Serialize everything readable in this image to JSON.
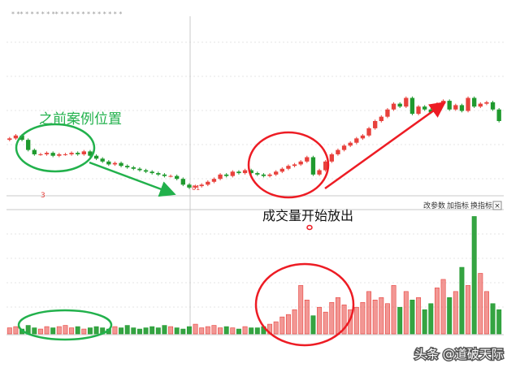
{
  "chart_data": {
    "type": "candlestick",
    "categories": [
      null,
      null,
      null,
      null,
      null,
      null,
      null,
      null,
      null,
      null,
      null,
      null,
      null,
      null,
      null,
      null,
      null,
      null,
      null,
      null,
      null,
      null,
      null,
      null,
      null,
      null,
      null,
      null,
      null,
      null,
      null,
      null,
      null,
      null,
      null,
      null,
      null,
      null,
      null,
      null,
      null,
      null,
      null,
      null,
      null,
      null,
      null,
      null,
      null,
      null,
      null,
      null,
      null,
      null,
      null,
      null,
      null,
      null,
      null,
      null,
      null,
      null,
      null,
      null,
      null,
      null,
      null,
      null,
      null,
      null,
      null,
      null,
      null,
      null,
      null,
      null,
      null,
      null,
      null,
      null
    ],
    "open": [
      37,
      38,
      40,
      37,
      30,
      27,
      27,
      28,
      26,
      27,
      27,
      28,
      27,
      29,
      26,
      24,
      22,
      20,
      21,
      19,
      18,
      17,
      16,
      15,
      14,
      13,
      12,
      12,
      10,
      6,
      4,
      5,
      6,
      8,
      10,
      13,
      12,
      15,
      14,
      16,
      14,
      13,
      12,
      13,
      15,
      17,
      19,
      20,
      22,
      25,
      13,
      16,
      22,
      27,
      30,
      33,
      35,
      38,
      40,
      45,
      50,
      53,
      58,
      62,
      60,
      66,
      55,
      60,
      58,
      56,
      62,
      64,
      58,
      61,
      57,
      66,
      60,
      62,
      63,
      58
    ],
    "high": [
      39,
      41,
      41,
      38,
      31,
      28,
      29,
      29,
      28,
      28,
      29,
      29,
      30,
      30,
      27,
      25,
      23,
      22,
      22,
      20,
      19,
      18,
      17,
      16,
      15,
      14,
      13,
      13,
      11,
      7,
      6,
      7,
      9,
      11,
      14,
      14,
      16,
      16,
      17,
      17,
      15,
      14,
      14,
      16,
      18,
      20,
      21,
      23,
      26,
      26,
      17,
      23,
      28,
      31,
      34,
      36,
      39,
      41,
      46,
      51,
      54,
      59,
      63,
      63,
      67,
      67,
      61,
      61,
      59,
      63,
      65,
      65,
      62,
      62,
      67,
      67,
      63,
      64,
      64,
      59
    ],
    "low": [
      36,
      37,
      36,
      29,
      26,
      26,
      26,
      25,
      25,
      26,
      26,
      26,
      26,
      25,
      23,
      21,
      19,
      19,
      18,
      17,
      16,
      15,
      14,
      13,
      12,
      11,
      11,
      9,
      5,
      3,
      3,
      4,
      5,
      7,
      9,
      11,
      11,
      13,
      13,
      13,
      12,
      11,
      11,
      12,
      14,
      16,
      18,
      19,
      21,
      12,
      12,
      15,
      21,
      26,
      29,
      32,
      34,
      37,
      39,
      44,
      49,
      52,
      57,
      59,
      59,
      54,
      54,
      57,
      55,
      55,
      61,
      57,
      57,
      56,
      56,
      59,
      59,
      61,
      57,
      49
    ],
    "close": [
      38,
      40,
      37,
      30,
      27,
      27,
      28,
      26,
      27,
      27,
      28,
      27,
      29,
      26,
      24,
      22,
      20,
      21,
      19,
      18,
      17,
      16,
      15,
      14,
      13,
      12,
      12,
      10,
      6,
      4,
      5,
      6,
      8,
      10,
      13,
      12,
      15,
      14,
      16,
      14,
      13,
      12,
      13,
      15,
      17,
      19,
      20,
      22,
      25,
      13,
      16,
      22,
      27,
      30,
      33,
      35,
      38,
      40,
      45,
      50,
      53,
      58,
      62,
      60,
      66,
      55,
      60,
      58,
      56,
      62,
      64,
      58,
      61,
      57,
      66,
      60,
      62,
      63,
      58,
      50
    ],
    "volume": [
      5,
      6,
      4,
      7,
      5,
      4,
      6,
      5,
      6,
      7,
      5,
      6,
      4,
      5,
      6,
      5,
      4,
      6,
      5,
      7,
      5,
      4,
      5,
      6,
      5,
      7,
      6,
      5,
      4,
      6,
      8,
      5,
      6,
      7,
      5,
      6,
      5,
      4,
      6,
      5,
      5,
      6,
      8,
      10,
      14,
      16,
      20,
      40,
      28,
      15,
      22,
      18,
      26,
      30,
      24,
      20,
      22,
      26,
      35,
      28,
      30,
      25,
      40,
      22,
      35,
      28,
      30,
      20,
      25,
      38,
      45,
      30,
      35,
      55,
      40,
      97,
      50,
      35,
      25,
      20
    ],
    "ylim": [
      0,
      100
    ],
    "volume_ylim": [
      0,
      100
    ],
    "up_color": "#e8413c",
    "down_color": "#1f9a2e",
    "annotations": [
      "之前案例位置",
      "成交量开始放出",
      "3",
      "01"
    ],
    "toolbar": [
      "改参数",
      "加指标",
      "换指标"
    ],
    "close_button": "×",
    "watermark": "头条 @道破天际"
  }
}
